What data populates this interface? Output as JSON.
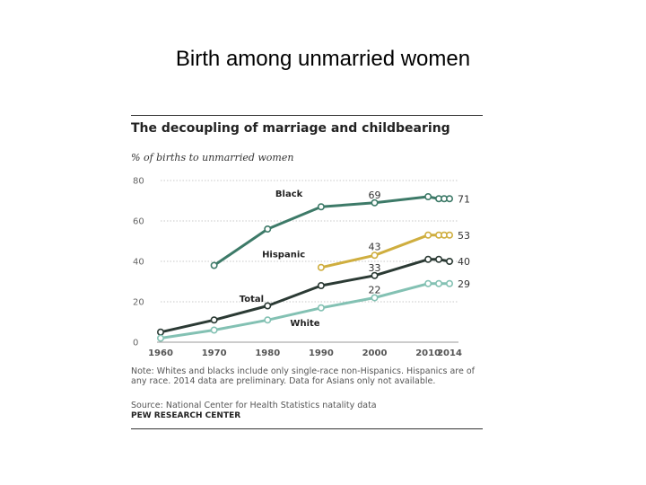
{
  "slide": {
    "title": "Birth among unmarried women"
  },
  "figure": {
    "title": "The decoupling of marriage and childbearing",
    "subtitle": "% of births to unmarried women",
    "note": "Note: Whites and blacks include only single-race non-Hispanics. Hispanics are of any race. 2014 data are preliminary. Data for Asians only not available.",
    "source": "Source: National Center for Health Statistics natality data",
    "brand": "PEW RESEARCH CENTER"
  },
  "chart_data": {
    "type": "line",
    "title": "The decoupling of marriage and childbearing",
    "subtitle": "% of births to unmarried women",
    "xlim": [
      1960,
      2014
    ],
    "ylim": [
      0,
      80
    ],
    "xticks": [
      "1960",
      "1970",
      "1980",
      "1990",
      "2000",
      "2010",
      "2014"
    ],
    "yticks": [
      "0",
      "20",
      "40",
      "60",
      "80"
    ],
    "grid": true,
    "series": [
      {
        "name": "Black",
        "color": "#3d7a68",
        "points": [
          [
            1970,
            38
          ],
          [
            1980,
            56
          ],
          [
            1990,
            67
          ],
          [
            2000,
            69
          ],
          [
            2010,
            72
          ],
          [
            2012,
            71
          ],
          [
            2013,
            71
          ],
          [
            2014,
            71
          ]
        ],
        "labels": [
          {
            "x": 2000,
            "text": "69"
          },
          {
            "x": 2014,
            "text": "71"
          }
        ]
      },
      {
        "name": "Hispanic",
        "color": "#cfae3f",
        "points": [
          [
            1990,
            37
          ],
          [
            2000,
            43
          ],
          [
            2010,
            53
          ],
          [
            2012,
            53
          ],
          [
            2013,
            53
          ],
          [
            2014,
            53
          ]
        ],
        "labels": [
          {
            "x": 2000,
            "text": "43"
          },
          {
            "x": 2014,
            "text": "53"
          }
        ]
      },
      {
        "name": "Total",
        "color": "#2b3a34",
        "points": [
          [
            1960,
            5
          ],
          [
            1970,
            11
          ],
          [
            1980,
            18
          ],
          [
            1990,
            28
          ],
          [
            2000,
            33
          ],
          [
            2010,
            41
          ],
          [
            2012,
            41
          ],
          [
            2014,
            40
          ]
        ],
        "labels": [
          {
            "x": 2000,
            "text": "33"
          },
          {
            "x": 2014,
            "text": "40"
          }
        ]
      },
      {
        "name": "White",
        "color": "#83c1b3",
        "points": [
          [
            1960,
            2
          ],
          [
            1970,
            6
          ],
          [
            1980,
            11
          ],
          [
            1990,
            17
          ],
          [
            2000,
            22
          ],
          [
            2010,
            29
          ],
          [
            2012,
            29
          ],
          [
            2014,
            29
          ]
        ],
        "labels": [
          {
            "x": 2000,
            "text": "22"
          },
          {
            "x": 2014,
            "text": "29"
          }
        ]
      }
    ]
  }
}
